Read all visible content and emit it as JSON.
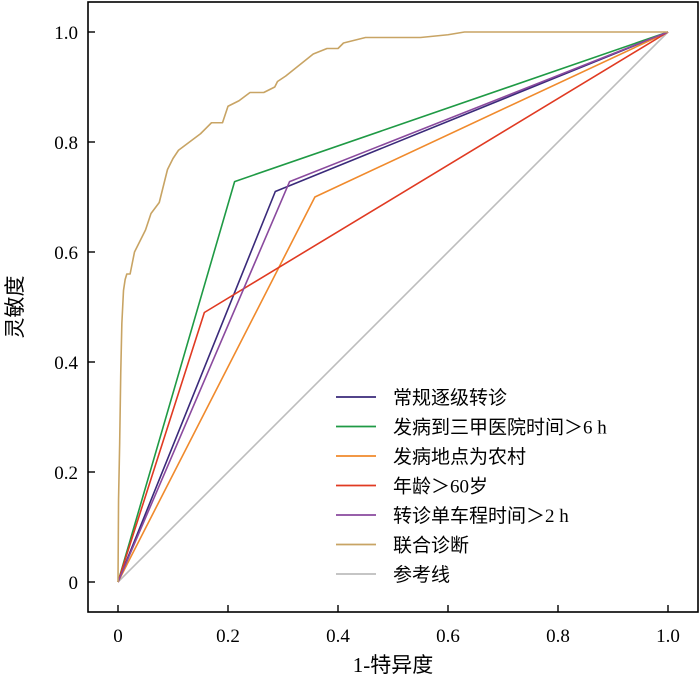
{
  "chart_data": {
    "type": "line",
    "title": "",
    "xlabel": "1-特异度",
    "ylabel": "灵敏度",
    "xlim": [
      0,
      1
    ],
    "ylim": [
      0,
      1
    ],
    "xticks": [
      "0",
      "0.2",
      "0.4",
      "0.6",
      "0.8",
      "1.0"
    ],
    "yticks": [
      "0",
      "0.2",
      "0.4",
      "0.6",
      "0.8",
      "1.0"
    ],
    "grid": false,
    "legend_position": "bottom-right",
    "series": [
      {
        "name": "常规逐级转诊",
        "color": "#3a2a7a",
        "x": [
          0,
          0.286,
          1
        ],
        "y": [
          0,
          0.71,
          1
        ]
      },
      {
        "name": "发病到三甲医院时间＞6 h",
        "color": "#1f9a45",
        "x": [
          0,
          0.212,
          1
        ],
        "y": [
          0,
          0.728,
          1
        ]
      },
      {
        "name": "发病地点为农村",
        "color": "#f08a2c",
        "x": [
          0,
          0.358,
          1
        ],
        "y": [
          0,
          0.7,
          1
        ]
      },
      {
        "name": "年龄＞60岁",
        "color": "#e03a22",
        "x": [
          0,
          0.157,
          1
        ],
        "y": [
          0,
          0.49,
          1
        ]
      },
      {
        "name": "转诊单车程时间＞2 h",
        "color": "#8a4a9e",
        "x": [
          0,
          0.312,
          1
        ],
        "y": [
          0,
          0.728,
          1
        ]
      },
      {
        "name": "联合诊断",
        "color": "#c8a464",
        "x": [
          0,
          0.001,
          0.003,
          0.005,
          0.007,
          0.01,
          0.013,
          0.016,
          0.022,
          0.03,
          0.04,
          0.05,
          0.06,
          0.075,
          0.09,
          0.1,
          0.11,
          0.13,
          0.15,
          0.17,
          0.19,
          0.2,
          0.21,
          0.22,
          0.24,
          0.255,
          0.265,
          0.285,
          0.29,
          0.305,
          0.33,
          0.355,
          0.38,
          0.4,
          0.41,
          0.45,
          0.48,
          0.55,
          0.6,
          0.63,
          0.75,
          0.85,
          1.0
        ],
        "y": [
          0,
          0.15,
          0.25,
          0.38,
          0.47,
          0.53,
          0.55,
          0.56,
          0.56,
          0.6,
          0.62,
          0.64,
          0.67,
          0.69,
          0.75,
          0.77,
          0.785,
          0.8,
          0.815,
          0.835,
          0.835,
          0.865,
          0.87,
          0.875,
          0.89,
          0.89,
          0.89,
          0.9,
          0.91,
          0.92,
          0.94,
          0.96,
          0.97,
          0.97,
          0.98,
          0.99,
          0.99,
          0.99,
          0.995,
          1.0,
          1.0,
          1.0,
          1.0
        ]
      },
      {
        "name": "参考线",
        "color": "#bdbdbd",
        "x": [
          0,
          1
        ],
        "y": [
          0,
          1
        ]
      }
    ]
  }
}
